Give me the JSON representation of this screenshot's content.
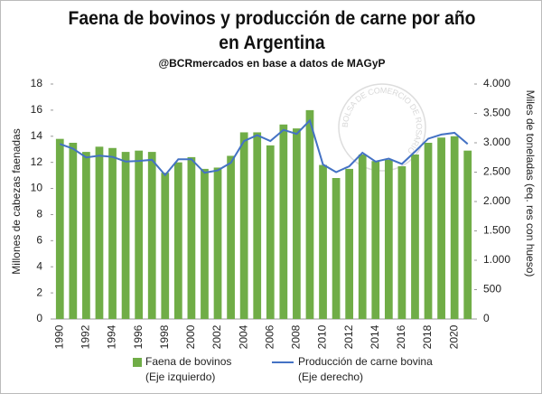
{
  "chart_data": {
    "type": "bar_line",
    "title": "Faena de bovinos y producción de carne por año en Argentina",
    "subtitle": "@BCRmercados en base a datos de MAGyP",
    "watermark": "BOLSA DE COMERCIO DE ROSARIO",
    "y_label": "Millones de cabezas faenadas",
    "y2_label": "Miles de toneladas (eq. res con hueso)",
    "categories": [
      "1990",
      null,
      "1992",
      null,
      "1994",
      null,
      "1996",
      null,
      "1998",
      null,
      "2000",
      null,
      "2002",
      null,
      "2004",
      null,
      "2006",
      null,
      "2008",
      null,
      "2010",
      null,
      "2012",
      null,
      "2014",
      null,
      "2016",
      null,
      "2018",
      null,
      "2020",
      null
    ],
    "series": [
      {
        "name": "Faena de bovinos",
        "legend_note": "(Eje izquierdo)",
        "color": "#70ad47",
        "kind": "bar",
        "values": [
          13.8,
          13.5,
          12.8,
          13.2,
          13.1,
          12.8,
          12.9,
          12.8,
          11.2,
          12.0,
          12.4,
          11.5,
          11.6,
          12.5,
          14.3,
          14.3,
          13.3,
          14.9,
          14.6,
          16.0,
          11.8,
          10.8,
          11.5,
          12.6,
          12.1,
          12.2,
          11.7,
          12.6,
          13.5,
          13.9,
          14.0,
          12.9
        ]
      },
      {
        "name": "Producción de carne bovina",
        "legend_note": "(Eje derecho)",
        "color": "#4472c4",
        "kind": "line",
        "axis": "y2",
        "values": [
          2980,
          2900,
          2750,
          2780,
          2760,
          2680,
          2690,
          2710,
          2450,
          2720,
          2720,
          2490,
          2530,
          2660,
          3030,
          3130,
          3030,
          3220,
          3150,
          3380,
          2630,
          2500,
          2600,
          2830,
          2680,
          2730,
          2640,
          2850,
          3070,
          3140,
          3170,
          2980
        ]
      }
    ],
    "ylim": [
      0,
      18
    ],
    "yticks": [
      0,
      2,
      4,
      6,
      8,
      10,
      12,
      14,
      16,
      18
    ],
    "y2lim": [
      0,
      4000
    ],
    "y2ticks": [
      0,
      500,
      {
        "value": 1000,
        "label": "1.000"
      },
      {
        "value": 1500,
        "label": "1.500"
      },
      {
        "value": 2000,
        "label": "2.000"
      },
      {
        "value": 2500,
        "label": "2.500"
      },
      {
        "value": 3000,
        "label": "3.000"
      },
      {
        "value": 3500,
        "label": "3.500"
      },
      {
        "value": 4000,
        "label": "4.000"
      }
    ],
    "grid": false
  }
}
